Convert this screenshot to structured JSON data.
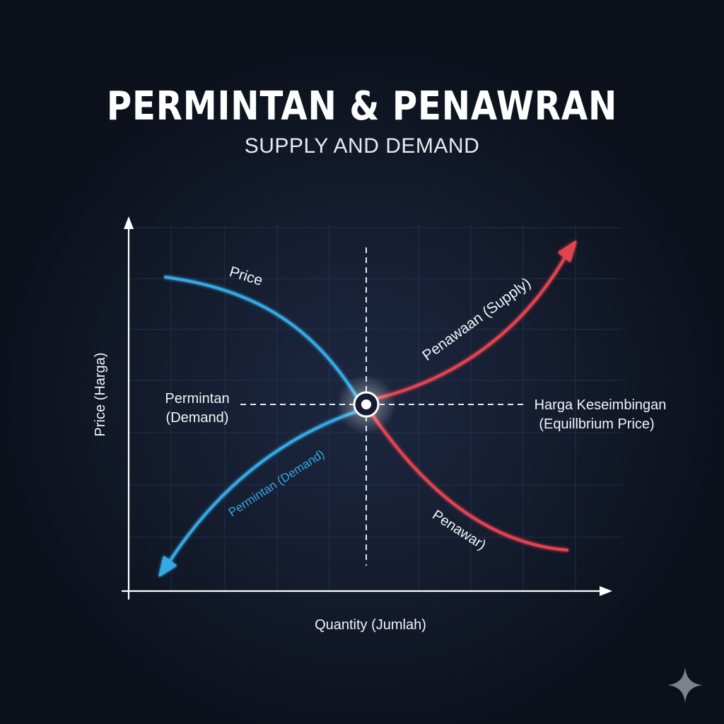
{
  "title": "PERMINTAN & PENAWRAN",
  "subtitle": "SUPPLY AND DEMAND",
  "axes": {
    "y_label": "Price (Harga)",
    "x_label": "Quantity (Jumlah)"
  },
  "curves": {
    "demand_top_label": "Price",
    "demand_bottom_label": "Permintan (Demand)",
    "supply_top_label": "Penawaan (Supply)",
    "supply_bottom_label": "Penawar)"
  },
  "left_label": {
    "line1": "Permintan",
    "line2": "(Demand)"
  },
  "right_label": {
    "line1": "Harga Keseimbingan",
    "line2": "(Equillbrium Price)"
  },
  "colors": {
    "demand": "#36a9e4",
    "supply": "#e5434f",
    "axis": "#ffffff",
    "grid": "#2a3650",
    "dashed": "#e6e9ef"
  },
  "icons": {
    "corner": "sparkle-icon"
  }
}
